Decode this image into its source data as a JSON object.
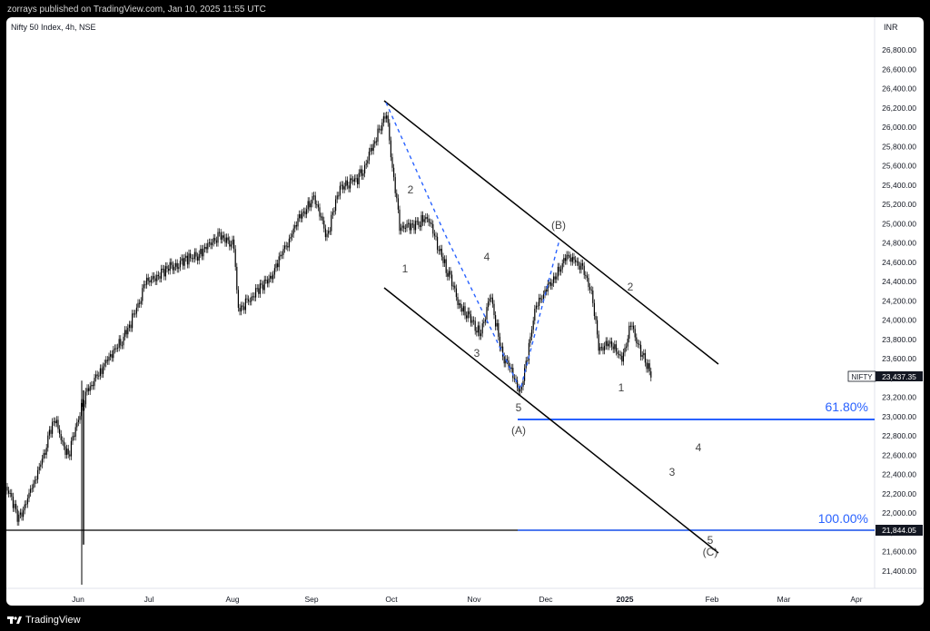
{
  "header": {
    "published": "zorrays published on TradingView.com, Jan 10, 2025 11:55 UTC"
  },
  "chart": {
    "symbol_title": "Nifty 50 Index, 4h, NSE",
    "currency": "INR",
    "price_axis": [
      "26,800.00",
      "26,600.00",
      "26,400.00",
      "26,200.00",
      "26,000.00",
      "25,800.00",
      "25,600.00",
      "25,400.00",
      "25,200.00",
      "25,000.00",
      "24,800.00",
      "24,600.00",
      "24,400.00",
      "24,200.00",
      "24,000.00",
      "23,800.00",
      "23,600.00",
      "23,400.00",
      "23,200.00",
      "23,000.00",
      "22,800.00",
      "22,600.00",
      "22,400.00",
      "22,200.00",
      "22,000.00",
      "21,800.00",
      "21,600.00",
      "21,400.00"
    ],
    "time_axis": [
      "Jun",
      "Jul",
      "Aug",
      "Sep",
      "Oct",
      "Nov",
      "Dec",
      "2025",
      "Feb",
      "Mar",
      "Apr"
    ],
    "last_price_label": "NIFTY",
    "last_price_value": "23,437.35",
    "level_100_value": "21,844.05",
    "fib_618": "61.80%",
    "fib_100": "100.00%",
    "wave_labels": {
      "w1": "1",
      "w2": "2",
      "w3": "3",
      "w4": "4",
      "w5": "5",
      "wA": "(A)",
      "wB": "(B)",
      "c1": "1",
      "c2": "2",
      "c3": "3",
      "c4": "4",
      "c5": "5",
      "cC": "(C)"
    },
    "colors": {
      "fib_line": "#2962ff",
      "dashed": "#2962ff",
      "candles": "#000000"
    }
  },
  "footer": {
    "brand": "TradingView"
  }
}
